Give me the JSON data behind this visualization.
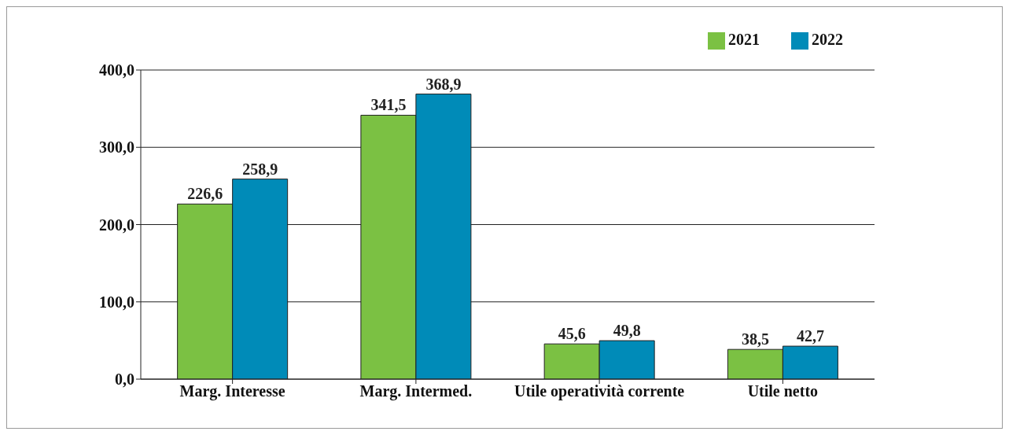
{
  "chart_data": {
    "type": "bar",
    "categories": [
      "Marg. Interesse",
      "Marg. Intermed.",
      "Utile operatività corrente",
      "Utile netto"
    ],
    "series": [
      {
        "name": "2021",
        "color": "#7bc143",
        "values": [
          226.6,
          341.5,
          45.6,
          38.5
        ],
        "value_labels": [
          "226,6",
          "341,5",
          "45,6",
          "38,5"
        ]
      },
      {
        "name": "2022",
        "color": "#008bb8",
        "values": [
          258.9,
          368.9,
          49.8,
          42.7
        ],
        "value_labels": [
          "258,9",
          "368,9",
          "49,8",
          "42,7"
        ]
      }
    ],
    "ylim": [
      0,
      400
    ],
    "yticks": [
      {
        "value": 0,
        "label": "0,0"
      },
      {
        "value": 100,
        "label": "100,0"
      },
      {
        "value": 200,
        "label": "200,0"
      },
      {
        "value": 300,
        "label": "300,0"
      },
      {
        "value": 400,
        "label": "400,0"
      }
    ],
    "grid": "y",
    "legend": "top right"
  }
}
